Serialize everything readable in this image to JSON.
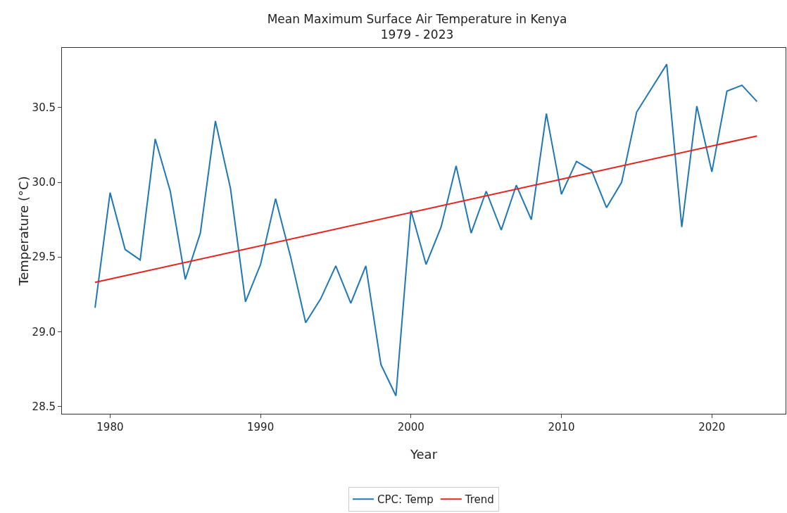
{
  "chart_data": {
    "type": "line",
    "title": "Mean Maximum Surface Air Temperature in Kenya\n1979 - 2023",
    "xlabel": "Year",
    "ylabel": "Temperature (°C)",
    "x": [
      1979,
      1980,
      1981,
      1982,
      1983,
      1984,
      1985,
      1986,
      1987,
      1988,
      1989,
      1990,
      1991,
      1992,
      1993,
      1994,
      1995,
      1996,
      1997,
      1998,
      1999,
      2000,
      2001,
      2002,
      2003,
      2004,
      2005,
      2006,
      2007,
      2008,
      2009,
      2010,
      2011,
      2012,
      2013,
      2014,
      2015,
      2016,
      2017,
      2018,
      2019,
      2020,
      2021,
      2022,
      2023
    ],
    "series": [
      {
        "name": "CPC: Temp",
        "color": "#1f77b4",
        "values": [
          29.16,
          29.93,
          29.55,
          29.48,
          30.29,
          29.94,
          29.35,
          29.66,
          30.41,
          29.96,
          29.2,
          29.45,
          29.89,
          29.5,
          29.06,
          29.22,
          29.44,
          29.19,
          29.44,
          28.78,
          28.57,
          29.81,
          29.45,
          29.7,
          30.11,
          29.66,
          29.94,
          29.68,
          29.98,
          29.75,
          30.46,
          29.92,
          30.14,
          30.08,
          29.83,
          30.0,
          30.47,
          30.63,
          30.79,
          29.7,
          30.51,
          30.07,
          30.61,
          30.65,
          30.54
        ]
      },
      {
        "name": "Trend",
        "type": "line",
        "color": "#e8221c",
        "x": [
          1979,
          2023
        ],
        "values": [
          29.33,
          30.31
        ]
      }
    ],
    "xlim": [
      1976.8,
      2024.9
    ],
    "xticks": [
      1980,
      1990,
      2000,
      2010,
      2020
    ],
    "ylim": [
      28.45,
      30.9
    ],
    "yticks": [
      {
        "value": 28.5,
        "label": "28.5"
      },
      {
        "value": 29,
        "label": "29.0"
      },
      {
        "value": 29.5,
        "label": "29.5"
      },
      {
        "value": 30,
        "label": "30.0"
      },
      {
        "value": 30.5,
        "label": "30.5"
      }
    ],
    "grid": false,
    "legend": "bottom",
    "marker": "none",
    "line_style": "solid"
  }
}
